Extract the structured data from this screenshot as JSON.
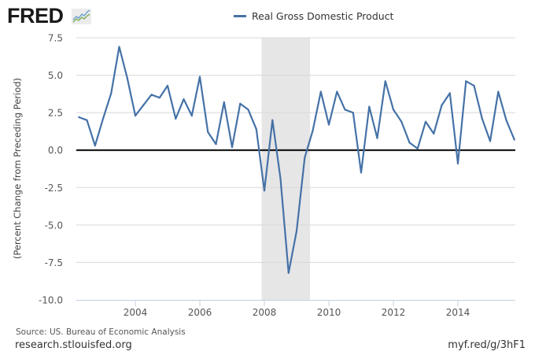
{
  "branding": {
    "logo_text": "FRED",
    "logo_icon": "trend-chart-icon"
  },
  "colors": {
    "series": "#4572a7",
    "recession": "#e6e6e6",
    "grid": "#d8d8d8",
    "zero_line": "#000000",
    "xaxis": "#c0d0e0"
  },
  "footer": {
    "source": "Source: US. Bureau of Economic Analysis",
    "site": "research.stlouisfed.org",
    "shortlink": "myf.red/g/3hF1"
  },
  "chart_data": {
    "type": "line",
    "title": "",
    "legend": [
      {
        "name": "Real Gross Domestic Product",
        "placement": "top-center"
      }
    ],
    "xlabel": "",
    "ylabel": "(Percent Change from Preceding Period)",
    "xlim": [
      2002.25,
      2015.75
    ],
    "ylim": [
      -10.0,
      7.5
    ],
    "yticks": [
      "7.5",
      "5.0",
      "2.5",
      "0.0",
      "-2.5",
      "-5.0",
      "-7.5",
      "-10.0"
    ],
    "ytick_values": [
      7.5,
      5.0,
      2.5,
      0.0,
      -2.5,
      -5.0,
      -7.5,
      -10.0
    ],
    "xticks": [
      "2004",
      "2006",
      "2008",
      "2010",
      "2012",
      "2014"
    ],
    "xtick_values": [
      2004,
      2006,
      2008,
      2010,
      2012,
      2014
    ],
    "grid": "horizontal",
    "recessions": [
      {
        "start": 2007.917,
        "end": 2009.417
      }
    ],
    "series": [
      {
        "name": "Real Gross Domestic Product",
        "x": [
          2002.25,
          2002.5,
          2002.75,
          2003.0,
          2003.25,
          2003.5,
          2003.75,
          2004.0,
          2004.25,
          2004.5,
          2004.75,
          2005.0,
          2005.25,
          2005.5,
          2005.75,
          2006.0,
          2006.25,
          2006.5,
          2006.75,
          2007.0,
          2007.25,
          2007.5,
          2007.75,
          2008.0,
          2008.25,
          2008.5,
          2008.75,
          2009.0,
          2009.25,
          2009.5,
          2009.75,
          2010.0,
          2010.25,
          2010.5,
          2010.75,
          2011.0,
          2011.25,
          2011.5,
          2011.75,
          2012.0,
          2012.25,
          2012.5,
          2012.75,
          2013.0,
          2013.25,
          2013.5,
          2013.75,
          2014.0,
          2014.25,
          2014.5,
          2014.75,
          2015.0,
          2015.25,
          2015.5,
          2015.75
        ],
        "values": [
          2.2,
          2.0,
          0.3,
          2.1,
          3.8,
          6.9,
          4.8,
          2.3,
          3.0,
          3.7,
          3.5,
          4.3,
          2.1,
          3.4,
          2.3,
          4.9,
          1.2,
          0.4,
          3.2,
          0.2,
          3.1,
          2.7,
          1.4,
          -2.7,
          2.0,
          -1.9,
          -8.2,
          -5.4,
          -0.5,
          1.3,
          3.9,
          1.7,
          3.9,
          2.7,
          2.5,
          -1.5,
          2.9,
          0.8,
          4.6,
          2.7,
          1.9,
          0.5,
          0.1,
          1.9,
          1.1,
          3.0,
          3.8,
          -0.9,
          4.6,
          4.3,
          2.1,
          0.6,
          3.9,
          2.0,
          0.7
        ]
      }
    ]
  }
}
